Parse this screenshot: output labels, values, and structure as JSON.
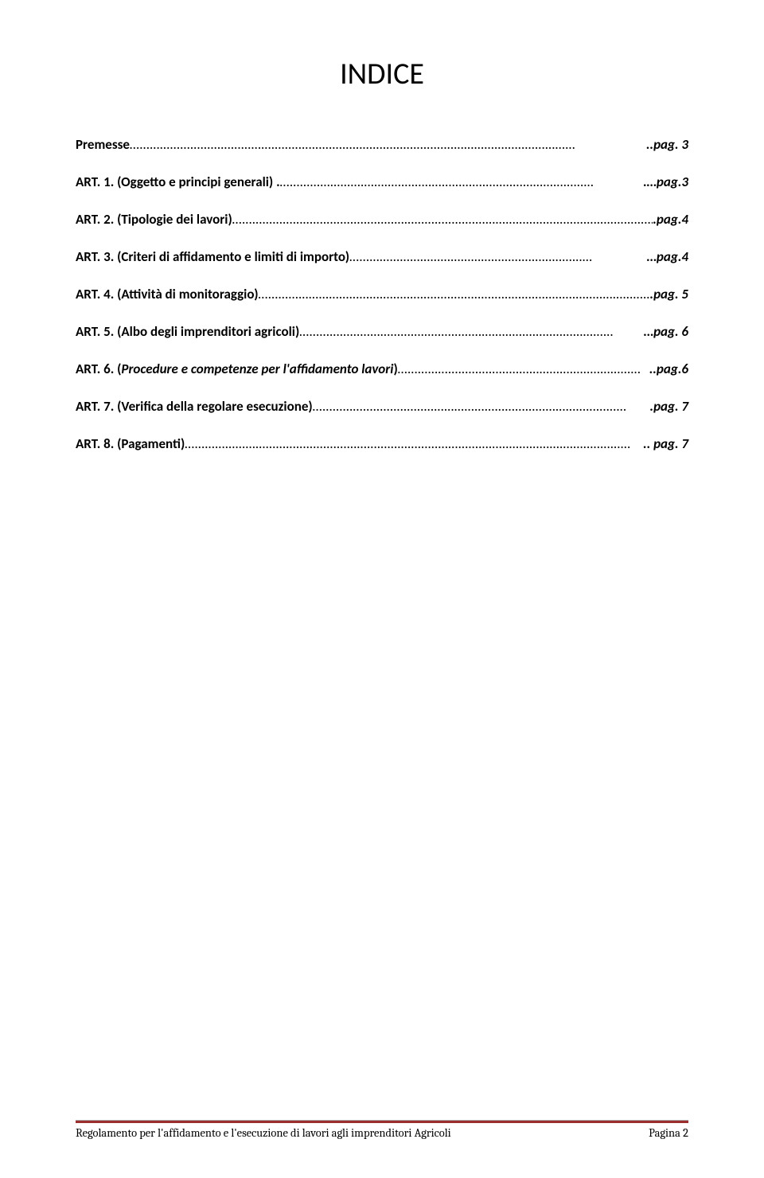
{
  "title": "INDICE",
  "dots": "……………………………………………………………………………………………………………………",
  "dots_med": "…………………………………………………………………………………",
  "dots_short": "………………………………………………………………",
  "entries": [
    {
      "label": "Premesse ",
      "page": "..pag. 3",
      "italic_page": true
    },
    {
      "label": "ART. 1. (Oggetto e principi generali) .",
      "page": ".…pag.3",
      "italic_page": true
    },
    {
      "label": "ART. 2. (Tipologie dei lavori) ",
      "page": ".pag.4",
      "italic_page": true
    },
    {
      "label": "ART. 3. (Criteri di affidamento e limiti di importo) ",
      "page": "…pag.4",
      "italic_page": true
    },
    {
      "label": "ART. 4. (Attività di monitoraggio) ",
      "page": ".pag. 5",
      "italic_page": true
    },
    {
      "label": "ART. 5. (Albo degli imprenditori agricoli) ",
      "page": "…pag. 6",
      "italic_page": true
    },
    {
      "label": "ART. 6. (",
      "label_italic": "Procedure e competenze per l'affidamento lavori",
      "label_after": ") ",
      "page": "..pag.6",
      "italic_page": true
    },
    {
      "label": "ART. 7. (Verifica della regolare esecuzione) ",
      "page": ".pag. 7",
      "italic_page": true
    },
    {
      "label": "ART. 8. (Pagamenti)",
      "page": ".. pag. 7",
      "italic_page": true
    }
  ],
  "footer": {
    "left": "Regolamento per l'affidamento e l'esecuzione  di lavori agli imprenditori Agricoli",
    "right": "Pagina 2",
    "line_color": "#9b2d2d"
  }
}
